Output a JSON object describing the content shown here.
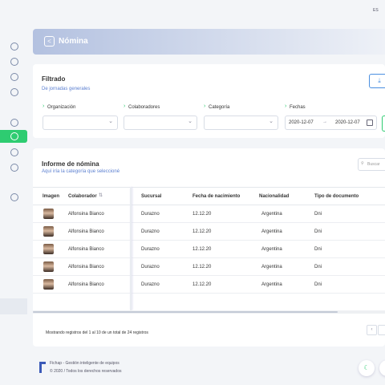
{
  "topbar": {
    "language": "ES"
  },
  "header": {
    "title": "Nómina"
  },
  "filter": {
    "title": "Filtrado",
    "subtitle": "De jornadas generales",
    "fields": [
      "Organización",
      "Colaboradores",
      "Categoría",
      "Fechas"
    ],
    "date_from": "2020-12-07",
    "date_to": "2020-12-07"
  },
  "report": {
    "title": "Informe de nómina",
    "subtitle": "Aquí iría la categoría que seleccioné",
    "search_placeholder": "Buscar",
    "table": {
      "columns": [
        "Imagen",
        "Colaborador",
        "Sucursal",
        "Fecha de nacimiento",
        "Nacionalidad",
        "Tipo de documento"
      ],
      "rows": [
        [
          "Alfonsina Bianco",
          "Durazno",
          "12.12.20",
          "Argentina",
          "Dni"
        ],
        [
          "Alfonsina Bianco",
          "Durazno",
          "12.12.20",
          "Argentina",
          "Dni"
        ],
        [
          "Alfonsina Bianco",
          "Durazno",
          "12.12.20",
          "Argentina",
          "Dni"
        ],
        [
          "Alfonsina Bianco",
          "Durazno",
          "12.12.20",
          "Argentina",
          "Dni"
        ],
        [
          "Alfonsina Bianco",
          "Durazno",
          "12.12.20",
          "Argentina",
          "Dni"
        ]
      ]
    },
    "footer": "Mostrando registros del 1 al 10 de un total de 24 registros"
  },
  "footer": {
    "brand": "Fichap - Gestión inteligente de equipos",
    "copyright": "© 2020 / Todos los derechos reservados"
  }
}
